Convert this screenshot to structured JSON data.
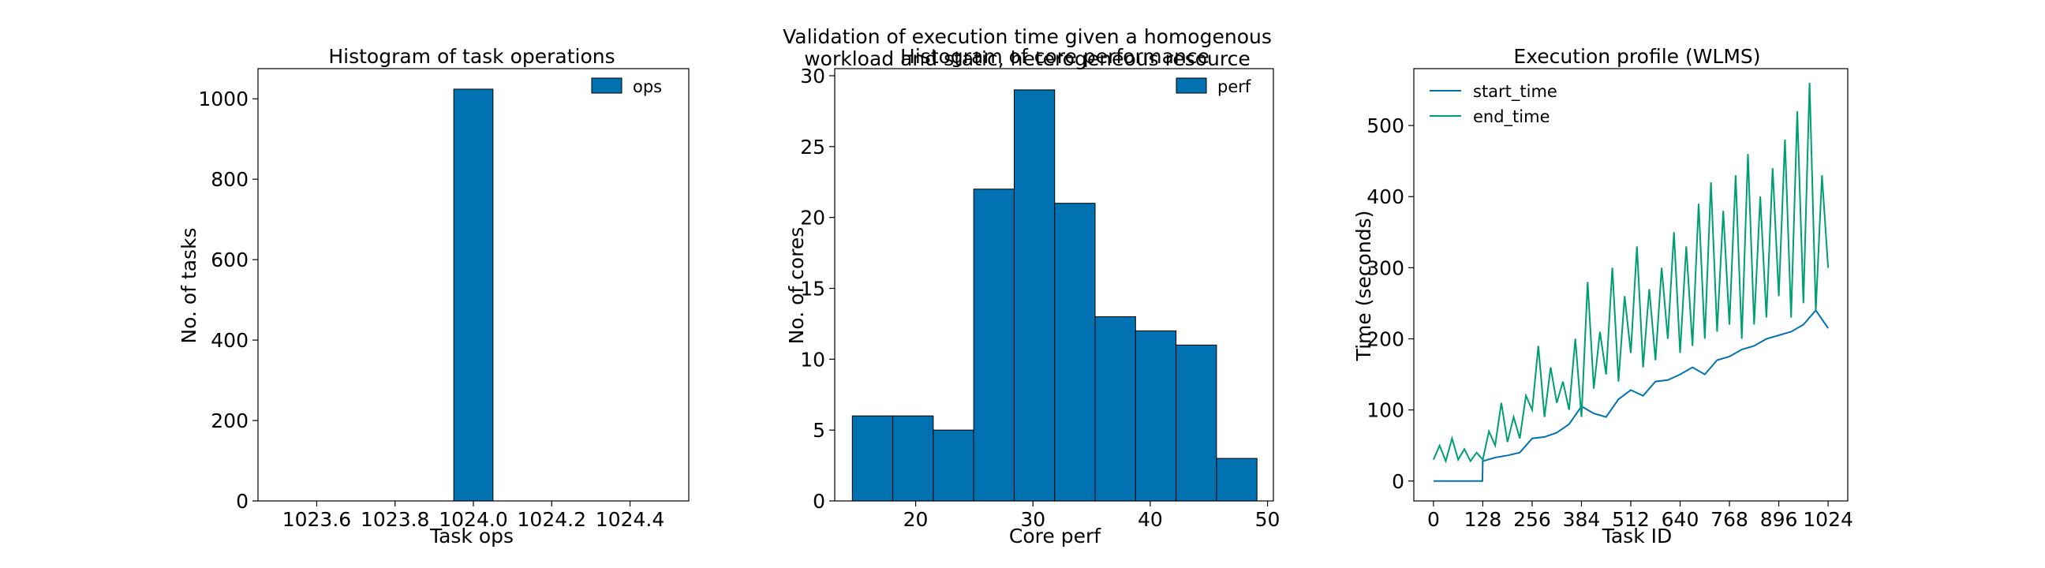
{
  "suptitle_line1": "Validation of execution time given a homogenous",
  "suptitle_line2": "workload and static, heterogeneous resource",
  "colors": {
    "bar": "#0072b2",
    "start_time": "#0072b2",
    "end_time": "#009e73",
    "edge": "#000000"
  },
  "chart_data": [
    {
      "type": "bar",
      "title": "Histogram of task operations",
      "xlabel": "Task ops",
      "ylabel": "No. of tasks",
      "legend": [
        "ops"
      ],
      "legend_position": "top-right",
      "xlim": [
        1023.45,
        1024.55
      ],
      "ylim": [
        0,
        1075
      ],
      "xticks": [
        "1023.6",
        "1023.8",
        "1024.0",
        "1024.2",
        "1024.4"
      ],
      "yticks": [
        "0",
        "200",
        "400",
        "600",
        "800",
        "1000"
      ],
      "bins": [
        {
          "x0": 1023.95,
          "x1": 1024.05,
          "count": 1024
        }
      ]
    },
    {
      "type": "bar",
      "title": "Histogram of core performance",
      "xlabel": "Core perf",
      "ylabel": "No. of cores",
      "legend": [
        "perf"
      ],
      "legend_position": "top-right",
      "xlim": [
        13.1,
        50.5
      ],
      "ylim": [
        0,
        30.5
      ],
      "xticks": [
        "20",
        "30",
        "40",
        "50"
      ],
      "yticks": [
        "0",
        "5",
        "10",
        "15",
        "20",
        "25",
        "30"
      ],
      "bin_edges": [
        14.6,
        18.05,
        21.5,
        24.95,
        28.4,
        31.85,
        35.3,
        38.75,
        42.2,
        45.65,
        49.1
      ],
      "counts": [
        6,
        6,
        5,
        22,
        29,
        21,
        13,
        12,
        11,
        3
      ]
    },
    {
      "type": "line",
      "title": "Execution profile (WLMS)",
      "xlabel": "Task ID",
      "ylabel": "Time (seconds)",
      "legend": [
        "start_time",
        "end_time"
      ],
      "legend_position": "top-left",
      "xlim": [
        -51,
        1075
      ],
      "ylim": [
        -28,
        580
      ],
      "xticks": [
        "0",
        "128",
        "256",
        "384",
        "512",
        "640",
        "768",
        "896",
        "1024"
      ],
      "yticks": [
        "0",
        "100",
        "200",
        "300",
        "400",
        "500"
      ],
      "series": [
        {
          "name": "start_time",
          "x": [
            0,
            64,
            127,
            128,
            160,
            192,
            224,
            256,
            288,
            320,
            352,
            384,
            416,
            448,
            480,
            512,
            544,
            576,
            608,
            640,
            672,
            704,
            736,
            768,
            800,
            832,
            864,
            896,
            928,
            960,
            992,
            1024
          ],
          "y": [
            0,
            0,
            0,
            28,
            33,
            36,
            40,
            60,
            62,
            68,
            80,
            105,
            95,
            90,
            115,
            128,
            120,
            140,
            142,
            150,
            160,
            150,
            170,
            175,
            185,
            190,
            200,
            205,
            210,
            220,
            240,
            215
          ]
        },
        {
          "name": "end_time",
          "x": [
            0,
            16,
            32,
            48,
            64,
            80,
            96,
            112,
            128,
            144,
            160,
            176,
            192,
            208,
            224,
            240,
            256,
            272,
            288,
            304,
            320,
            336,
            352,
            368,
            384,
            400,
            416,
            432,
            448,
            464,
            480,
            496,
            512,
            528,
            544,
            560,
            576,
            592,
            608,
            624,
            640,
            656,
            672,
            688,
            704,
            720,
            736,
            752,
            768,
            784,
            800,
            816,
            832,
            848,
            864,
            880,
            896,
            912,
            928,
            944,
            960,
            976,
            992,
            1008,
            1024
          ],
          "y": [
            30,
            50,
            28,
            60,
            30,
            45,
            28,
            40,
            30,
            70,
            50,
            110,
            55,
            90,
            60,
            120,
            100,
            190,
            90,
            160,
            110,
            140,
            100,
            200,
            90,
            280,
            130,
            210,
            150,
            300,
            140,
            260,
            180,
            330,
            160,
            270,
            170,
            300,
            200,
            350,
            180,
            330,
            190,
            390,
            200,
            420,
            210,
            380,
            220,
            430,
            200,
            460,
            220,
            400,
            230,
            440,
            260,
            480,
            230,
            520,
            250,
            560,
            240,
            430,
            300
          ]
        }
      ]
    }
  ]
}
